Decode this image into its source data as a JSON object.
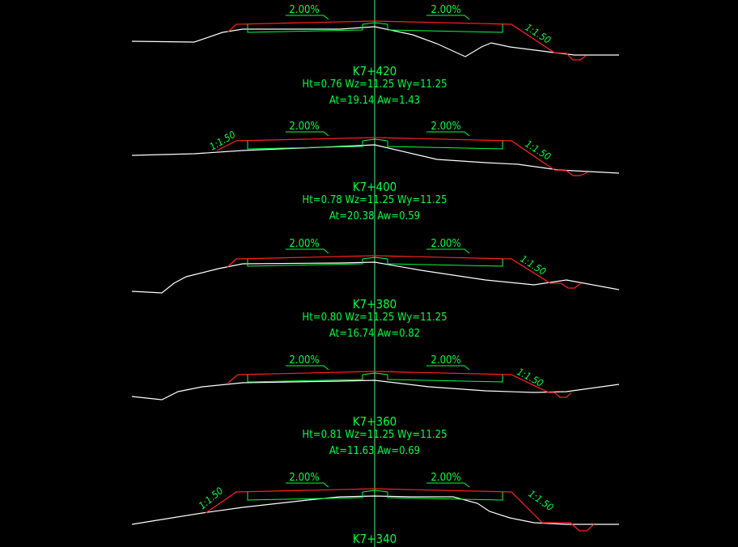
{
  "sections": [
    {
      "station": "K7+420",
      "info1": "Ht=0.76 Wz=11.25 Wy=11.25",
      "info2": "At=19.14 Aw=1.43",
      "left_grade": "2.00%",
      "right_grade": "2.00%",
      "left_slope": "",
      "right_slope": "1:1.50"
    },
    {
      "station": "K7+400",
      "info1": "Ht=0.78 Wz=11.25 Wy=11.25",
      "info2": "At=20.38 Aw=0.59",
      "left_grade": "2.00%",
      "right_grade": "2.00%",
      "left_slope": "1:1.50",
      "right_slope": "1:1.50"
    },
    {
      "station": "K7+380",
      "info1": "Ht=0.80 Wz=11.25 Wy=11.25",
      "info2": "At=16.74 Aw=0.82",
      "left_grade": "2.00%",
      "right_grade": "2.00%",
      "left_slope": "",
      "right_slope": "1:1.50"
    },
    {
      "station": "K7+360",
      "info1": "Ht=0.81 Wz=11.25 Wy=11.25",
      "info2": "At=11.63 Aw=0.69",
      "left_grade": "2.00%",
      "right_grade": "2.00%",
      "left_slope": "",
      "right_slope": "1:1.50"
    },
    {
      "station": "K7+340",
      "info1": "",
      "info2": "",
      "left_grade": "2.00%",
      "right_grade": "2.00%",
      "left_slope": "1:1.50",
      "right_slope": "1:1.50"
    }
  ],
  "colors": {
    "background": "#000000",
    "text": "#00ff40",
    "ground_line": "#ffffff",
    "design_line": "#ff2020",
    "structure": "#00ff40"
  }
}
